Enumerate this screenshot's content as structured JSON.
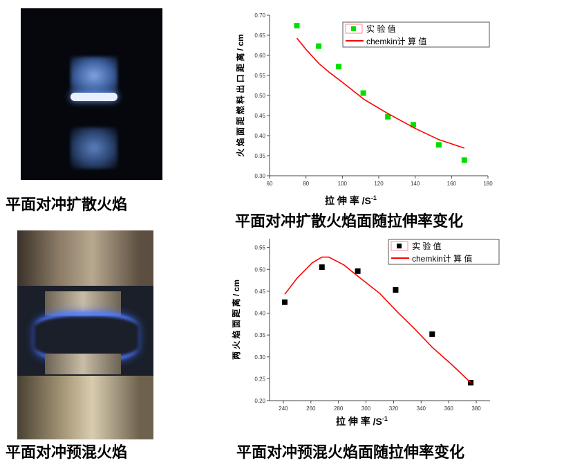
{
  "panels": [
    {
      "caption": "平面对冲扩散火焰"
    },
    {
      "caption": "平面对冲扩散火焰面随拉伸率变化"
    },
    {
      "caption": "平面对冲预混火焰"
    },
    {
      "caption": "平面对冲预混火焰面随拉伸率变化"
    }
  ],
  "chart_data": [
    {
      "type": "scatter+line",
      "xlabel": "拉 伸 率 /S",
      "xlabel_sup": "-1",
      "ylabel": "火 焰 面 距 燃 料 出 口 距 离 / cm",
      "xlim": [
        60,
        180
      ],
      "ylim": [
        0.3,
        0.7
      ],
      "xticks": [
        60,
        80,
        100,
        120,
        140,
        160,
        180
      ],
      "yticks": [
        0.3,
        0.35,
        0.4,
        0.45,
        0.5,
        0.55,
        0.6,
        0.65,
        0.7
      ],
      "legend": {
        "position": "top-right",
        "entries": [
          "实 验 值",
          "chemkin计 算 值"
        ]
      },
      "series": [
        {
          "name": "实 验 值",
          "kind": "scatter",
          "color": "#00e000",
          "x": [
            75,
            87,
            98,
            111.5,
            125,
            139,
            153,
            167
          ],
          "y": [
            0.674,
            0.623,
            0.572,
            0.506,
            0.447,
            0.427,
            0.377,
            0.339
          ]
        },
        {
          "name": "chemkin计 算 值",
          "kind": "line",
          "color": "#ff0000",
          "x": [
            75,
            80,
            87,
            93,
            100,
            112,
            125,
            140,
            153,
            167
          ],
          "y": [
            0.643,
            0.615,
            0.58,
            0.557,
            0.533,
            0.49,
            0.455,
            0.418,
            0.39,
            0.369
          ]
        }
      ]
    },
    {
      "type": "scatter+line",
      "xlabel": "拉 伸 率 /S",
      "xlabel_sup": "-1",
      "ylabel": "两 火 焰 面 距 离 / cm",
      "xlim": [
        230,
        390
      ],
      "ylim": [
        0.2,
        0.57
      ],
      "xticks": [
        240,
        260,
        280,
        300,
        320,
        340,
        360,
        380
      ],
      "yticks": [
        0.2,
        0.25,
        0.3,
        0.35,
        0.4,
        0.45,
        0.5,
        0.55
      ],
      "legend": {
        "position": "top-right",
        "entries": [
          "实 验 值",
          "chemkin计 算 值"
        ]
      },
      "series": [
        {
          "name": "实 验 值",
          "kind": "scatter",
          "color": "#000000",
          "x": [
            241,
            268,
            294,
            321.5,
            348,
            376
          ],
          "y": [
            0.425,
            0.505,
            0.496,
            0.453,
            0.352,
            0.241
          ]
        },
        {
          "name": "chemkin计 算 值",
          "kind": "line",
          "color": "#ff0000",
          "x": [
            241,
            250,
            261,
            268,
            273,
            284,
            295,
            310,
            322,
            335,
            348,
            362,
            376
          ],
          "y": [
            0.443,
            0.48,
            0.515,
            0.528,
            0.528,
            0.51,
            0.482,
            0.445,
            0.405,
            0.365,
            0.322,
            0.283,
            0.241
          ]
        }
      ]
    }
  ]
}
